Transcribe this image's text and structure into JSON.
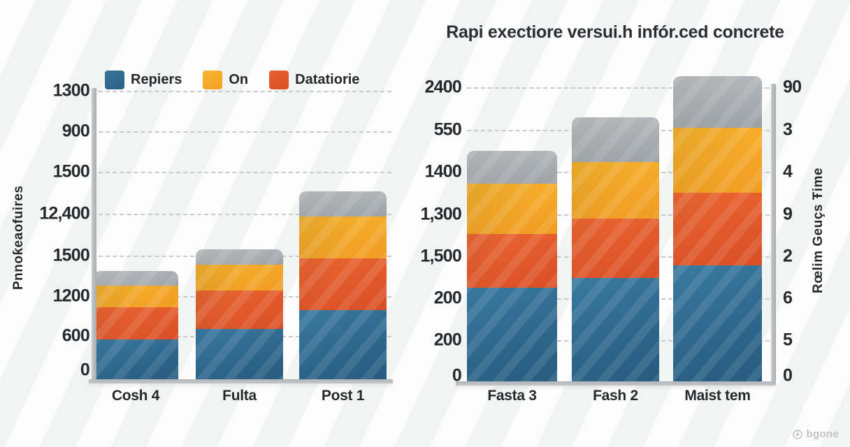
{
  "title": "Rapi exectiore versui.h infór.ced concrete",
  "legend": [
    {
      "label": "Repiers",
      "color_key": "blue"
    },
    {
      "label": "On",
      "color_key": "yellow"
    },
    {
      "label": "Datatiorie",
      "color_key": "orange"
    }
  ],
  "colors": {
    "blue": "#2e6d94",
    "yellow": "#f8b02a",
    "orange": "#e2572b",
    "gray": "#a9aeb4",
    "grid": "#c8cbcd",
    "axis": "#b2b6b8",
    "text": "#26292c"
  },
  "watermark": {
    "text": "bgone"
  },
  "chart_data": [
    {
      "type": "bar",
      "stacked": true,
      "position": "left-panel",
      "title": "",
      "categories": [
        "Cosh 4",
        "Fulta",
        "Post 1"
      ],
      "y_ticks": [
        "1300",
        "900",
        "1500",
        "12,400",
        "1500",
        "1200",
        "600",
        "0"
      ],
      "ylabel": "Pnnoƙeaofuires",
      "grid": true,
      "value_unit": "px-height (axis labels are non-numeric/garbled)",
      "series": [
        {
          "name": "Repiers",
          "color": "blue",
          "values": [
            57,
            72,
            99
          ]
        },
        {
          "name": "Datatiorie",
          "color": "orange",
          "values": [
            46,
            55,
            74
          ]
        },
        {
          "name": "On",
          "color": "yellow",
          "values": [
            31,
            37,
            60
          ]
        },
        {
          "name": "gray-cap (no legend entry)",
          "color": "gray",
          "values": [
            21,
            22,
            36
          ]
        }
      ]
    },
    {
      "type": "bar",
      "stacked": true,
      "position": "right-panel",
      "title": "Rapi exectiore versui.h infór.ced concrete",
      "categories": [
        "Fasta 3",
        "Fash 2",
        "Maist tem"
      ],
      "y_ticks_left": [
        "2400",
        "550",
        "1400",
        "1,300",
        "1,500",
        "200",
        "200",
        "0"
      ],
      "y_ticks_right": [
        "90",
        "3",
        "4",
        "9",
        "2",
        "6",
        "5",
        "0"
      ],
      "ylabel_right": "Rœlim Geuçs Ŧime",
      "grid": true,
      "value_unit": "px-height (axis labels are non-numeric/garbled)",
      "series": [
        {
          "name": "Repiers",
          "color": "blue",
          "values": [
            134,
            148,
            166
          ]
        },
        {
          "name": "Datatiorie",
          "color": "orange",
          "values": [
            77,
            85,
            104
          ]
        },
        {
          "name": "On",
          "color": "yellow",
          "values": [
            72,
            81,
            93
          ]
        },
        {
          "name": "gray-cap (no legend entry)",
          "color": "gray",
          "values": [
            47,
            64,
            74
          ]
        }
      ]
    }
  ]
}
